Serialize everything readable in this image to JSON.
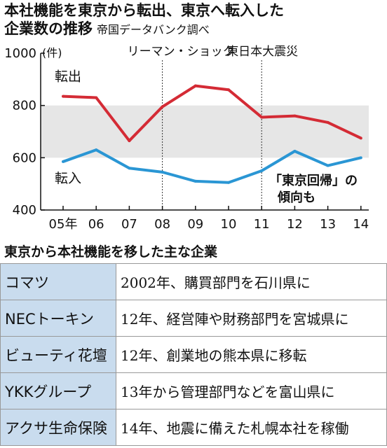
{
  "header": {
    "title_line1": "本社機能を東京から転出、東京へ転入した",
    "title_line2": "企業数の推移",
    "source": "帝国データバンク調べ"
  },
  "chart_data": {
    "type": "line",
    "x": [
      "05年",
      "06",
      "07",
      "08",
      "09",
      "10",
      "11",
      "12",
      "13",
      "14"
    ],
    "series": [
      {
        "name": "転出",
        "color": "#d42b35",
        "values": [
          835,
          830,
          665,
          795,
          875,
          860,
          755,
          760,
          735,
          675
        ]
      },
      {
        "name": "転入",
        "color": "#2a96d4",
        "values": [
          585,
          630,
          560,
          545,
          510,
          505,
          550,
          625,
          570,
          600
        ]
      }
    ],
    "ylim": [
      400,
      1000
    ],
    "yticks": [
      "400",
      "600",
      "800",
      "1000"
    ],
    "yunit": "(件)",
    "shaded_band": [
      600,
      800
    ],
    "events": [
      {
        "label": "リーマン・ショック",
        "x": "08"
      },
      {
        "label": "東日本大震災",
        "x": "11"
      }
    ],
    "annotation_line1": "「東京回帰」の",
    "annotation_line2": "傾向も",
    "grid": false,
    "legend": "inline labels"
  },
  "section": {
    "title": "東京から本社機能を移した主な企業"
  },
  "companies": [
    {
      "name": "コマツ",
      "desc": "2002年、購買部門を石川県に"
    },
    {
      "name": "NECトーキン",
      "desc": "12年、経営陣や財務部門を宮城県に"
    },
    {
      "name": "ビューティ花壇",
      "desc": "12年、創業地の熊本県に移転"
    },
    {
      "name": "YKKグループ",
      "desc": "13年から管理部門などを富山県に"
    },
    {
      "name": "アクサ生命保険",
      "desc": "14年、地震に備えた札幌本社を稼働"
    }
  ]
}
